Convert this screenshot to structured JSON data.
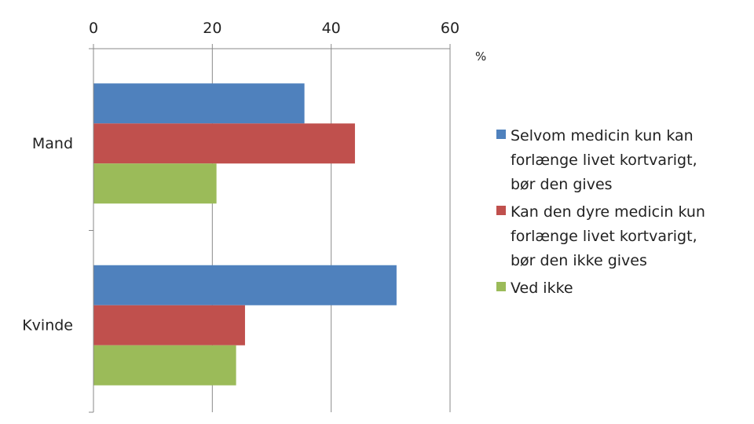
{
  "chart_data": {
    "type": "bar",
    "orientation": "horizontal",
    "axis_position": "top",
    "categories": [
      "Mand",
      "Kvinde"
    ],
    "series": [
      {
        "name": "Selvom medicin kun kan forlænge livet kortvarigt, bør den gives",
        "color": "#4F81BD",
        "values": [
          35.5,
          51
        ]
      },
      {
        "name": "Kan den dyre medicin kun forlænge livet kortvarigt, bør den ikke gives",
        "color": "#C0504D",
        "values": [
          44,
          25.5
        ]
      },
      {
        "name": "Ved ikke",
        "color": "#9BBB59",
        "values": [
          20.7,
          24
        ]
      }
    ],
    "xlim": [
      0,
      60
    ],
    "ticks": [
      0,
      20,
      40,
      60
    ],
    "unit": "%",
    "grid": true,
    "legend_position": "right",
    "legend": [
      {
        "lines": [
          "Selvom medicin kun kan",
          "forlænge livet kortvarigt,",
          "bør den gives"
        ]
      },
      {
        "lines": [
          "Kan den dyre medicin kun",
          "forlænge livet kortvarigt,",
          "bør den ikke gives"
        ]
      },
      {
        "lines": [
          "Ved ikke"
        ]
      }
    ]
  }
}
